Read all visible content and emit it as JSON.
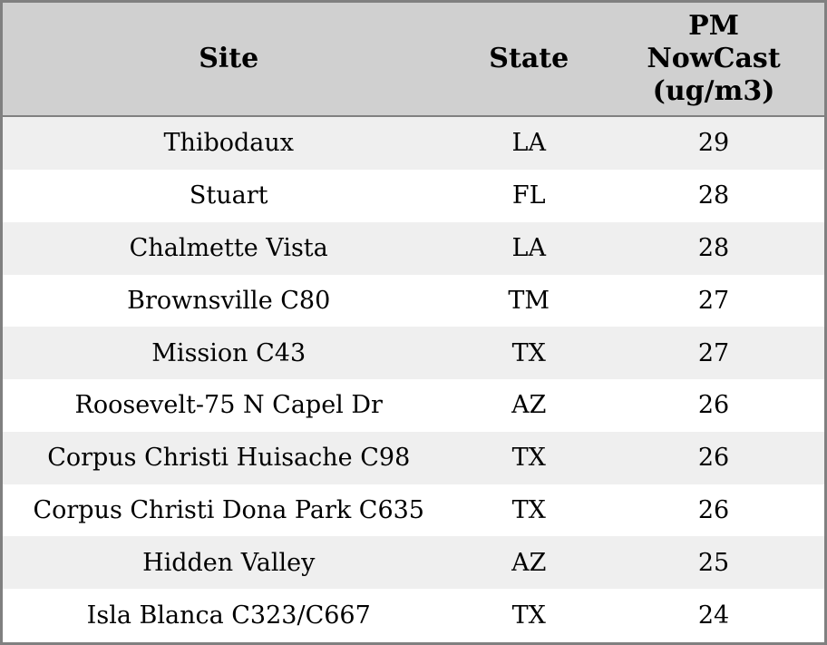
{
  "chart_data": {
    "type": "table",
    "title": "",
    "columns": [
      "Site",
      "State",
      "PM NowCast (ug/m3)"
    ],
    "rows": [
      [
        "Thibodaux",
        "LA",
        29
      ],
      [
        "Stuart",
        "FL",
        28
      ],
      [
        "Chalmette Vista",
        "LA",
        28
      ],
      [
        "Brownsville C80",
        "TM",
        27
      ],
      [
        "Mission C43",
        "TX",
        27
      ],
      [
        "Roosevelt-75 N Capel Dr",
        "AZ",
        26
      ],
      [
        "Corpus Christi Huisache C98",
        "TX",
        26
      ],
      [
        "Corpus Christi Dona Park C635",
        "TX",
        26
      ],
      [
        "Hidden Valley",
        "AZ",
        25
      ],
      [
        "Isla Blanca C323/C667",
        "TX",
        24
      ]
    ],
    "colors": {
      "header_bg": "#d0d0d0",
      "row_stripe_bg": "#efefef",
      "row_plain_bg": "#ffffff",
      "border": "#808080",
      "text": "#000000"
    }
  }
}
